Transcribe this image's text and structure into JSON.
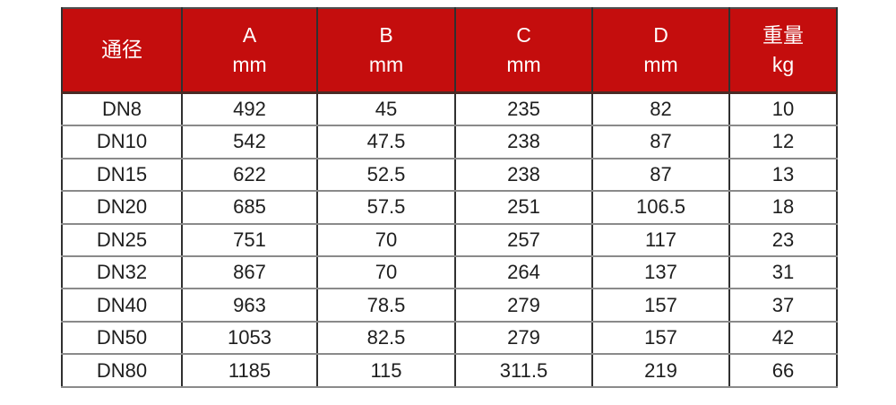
{
  "colors": {
    "header_bg": "#C40D0D",
    "header_text": "#FFFFFF",
    "body_text": "#1E1E1E",
    "grid_vertical": "#303030",
    "grid_horizontal": "#8A8A8A",
    "outer_border": "#4D4D4D",
    "header_underline": "#4A2B25"
  },
  "chart_data": {
    "type": "table",
    "columns": [
      {
        "label": "通径",
        "unit": ""
      },
      {
        "label": "A",
        "unit": "mm"
      },
      {
        "label": "B",
        "unit": "mm"
      },
      {
        "label": "C",
        "unit": "mm"
      },
      {
        "label": "D",
        "unit": "mm"
      },
      {
        "label": "重量",
        "unit": "kg"
      }
    ],
    "rows": [
      [
        "DN8",
        "492",
        "45",
        "235",
        "82",
        "10"
      ],
      [
        "DN10",
        "542",
        "47.5",
        "238",
        "87",
        "12"
      ],
      [
        "DN15",
        "622",
        "52.5",
        "238",
        "87",
        "13"
      ],
      [
        "DN20",
        "685",
        "57.5",
        "251",
        "106.5",
        "18"
      ],
      [
        "DN25",
        "751",
        "70",
        "257",
        "117",
        "23"
      ],
      [
        "DN32",
        "867",
        "70",
        "264",
        "137",
        "31"
      ],
      [
        "DN40",
        "963",
        "78.5",
        "279",
        "157",
        "37"
      ],
      [
        "DN50",
        "1053",
        "82.5",
        "279",
        "157",
        "42"
      ],
      [
        "DN80",
        "1185",
        "115",
        "311.5",
        "219",
        "66"
      ]
    ]
  }
}
